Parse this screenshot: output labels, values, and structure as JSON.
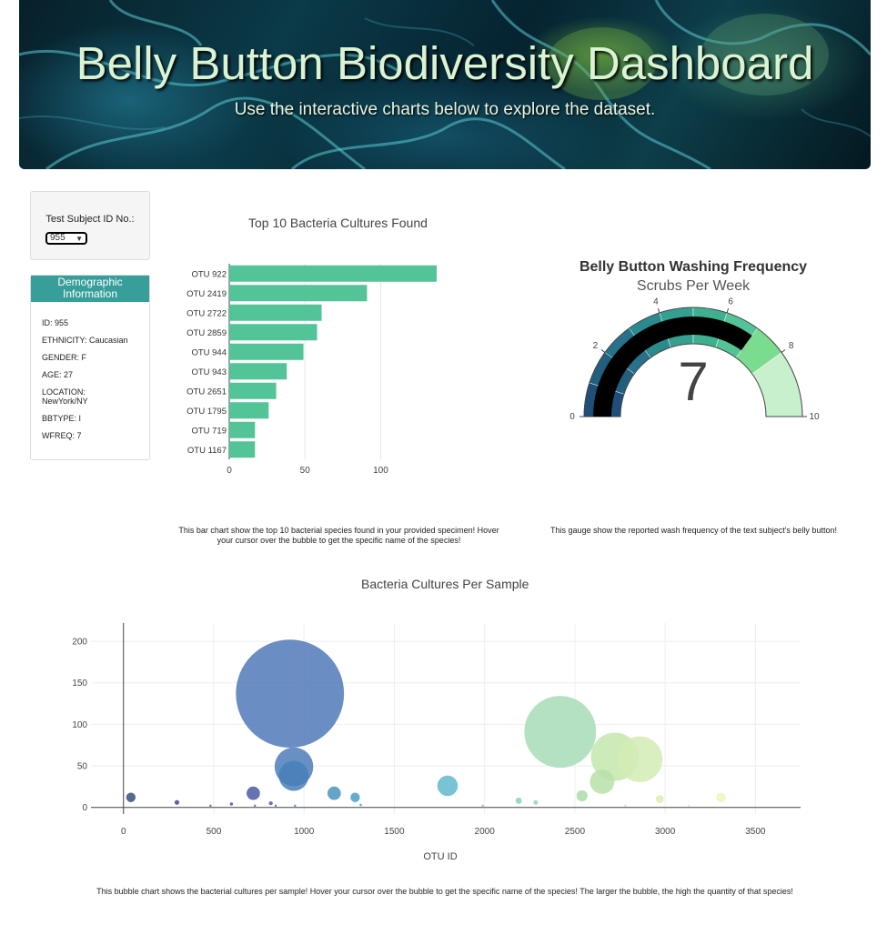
{
  "banner": {
    "title": "Belly Button Biodiversity Dashboard",
    "subtitle": "Use the interactive charts below to explore the dataset."
  },
  "selector": {
    "label": "Test Subject ID No.:",
    "selected": "955"
  },
  "demographics": {
    "header": "Demographic Information",
    "items": [
      "ID: 955",
      "ETHNICITY: Caucasian",
      "GENDER: F",
      "AGE: 27",
      "LOCATION: NewYork/NY",
      "BBTYPE: I",
      "WFREQ: 7"
    ]
  },
  "captions": {
    "bar": "This bar chart show the top 10 bacterial species found in your provided specimen! Hover your cursor over the bubble to get the specific name of the species!",
    "gauge": "This gauge show the reported wash frequency of the text subject's belly button!",
    "bubble": "This bubble chart shows the bacterial cultures per sample! Hover your cursor over the bubble to get the specific name of the species! The larger the bubble, the high the quantity of that species!"
  },
  "colors": {
    "bar": "#52c497",
    "demo_header": "#379e9a"
  },
  "chart_data": [
    {
      "type": "bar",
      "orientation": "horizontal",
      "title": "Top 10 Bacteria Cultures Found",
      "categories": [
        "OTU 922",
        "OTU 2419",
        "OTU 2722",
        "OTU 2859",
        "OTU 944",
        "OTU 943",
        "OTU 2651",
        "OTU 1795",
        "OTU 719",
        "OTU 1167"
      ],
      "values": [
        137,
        91,
        61,
        58,
        49,
        38,
        31,
        26,
        17,
        17
      ],
      "xticks": [
        0,
        50,
        100
      ],
      "xlim": [
        0,
        137
      ]
    },
    {
      "type": "gauge",
      "title": "Belly Button Washing Frequency",
      "subtitle": "Scrubs Per Week",
      "value": 7,
      "range": [
        0,
        10
      ],
      "ticks": [
        0,
        2,
        4,
        6,
        8,
        10
      ],
      "steps": [
        {
          "range": [
            0,
            1
          ],
          "color": "#1f4e79"
        },
        {
          "range": [
            1,
            2
          ],
          "color": "#215f7c"
        },
        {
          "range": [
            2,
            3
          ],
          "color": "#27718a"
        },
        {
          "range": [
            3,
            4
          ],
          "color": "#2b8a8d"
        },
        {
          "range": [
            4,
            5
          ],
          "color": "#34a08f"
        },
        {
          "range": [
            5,
            6
          ],
          "color": "#3fb08f"
        },
        {
          "range": [
            6,
            7
          ],
          "color": "#52c497"
        },
        {
          "range": [
            7,
            8
          ],
          "color": "#79dc8f"
        },
        {
          "range": [
            8,
            10
          ],
          "color": "#c8f0cc"
        }
      ]
    },
    {
      "type": "scatter",
      "title": "Bacteria Cultures Per Sample",
      "xlabel": "OTU ID",
      "xlim": [
        -180,
        3750
      ],
      "ylim": [
        -8,
        222
      ],
      "xticks": [
        0,
        500,
        1000,
        1500,
        2000,
        2500,
        3000,
        3500
      ],
      "yticks": [
        0,
        50,
        100,
        150,
        200
      ],
      "points": [
        {
          "x": 922,
          "y": 137,
          "c": "#5079b8"
        },
        {
          "x": 944,
          "y": 49,
          "c": "#4d7db9"
        },
        {
          "x": 943,
          "y": 38,
          "c": "#4780b8"
        },
        {
          "x": 2419,
          "y": 91,
          "c": "#a8dcb8"
        },
        {
          "x": 2722,
          "y": 61,
          "c": "#c4e6ad"
        },
        {
          "x": 2859,
          "y": 58,
          "c": "#d4ecb4"
        },
        {
          "x": 2651,
          "y": 31,
          "c": "#b8e0a8"
        },
        {
          "x": 1795,
          "y": 26,
          "c": "#62b8cc"
        },
        {
          "x": 1167,
          "y": 17,
          "c": "#4a93c0"
        },
        {
          "x": 719,
          "y": 17,
          "c": "#4a5aa0"
        },
        {
          "x": 1283,
          "y": 12,
          "c": "#4a9fc8"
        },
        {
          "x": 41,
          "y": 12,
          "c": "#3b4b80"
        },
        {
          "x": 2540,
          "y": 14,
          "c": "#a8dca8"
        },
        {
          "x": 3310,
          "y": 12,
          "c": "#eef5b8"
        },
        {
          "x": 2970,
          "y": 10,
          "c": "#dcefb0"
        },
        {
          "x": 2189,
          "y": 8,
          "c": "#8dd0b8"
        },
        {
          "x": 2283,
          "y": 6,
          "c": "#9ad6b4"
        },
        {
          "x": 296,
          "y": 6,
          "c": "#404b90"
        },
        {
          "x": 816,
          "y": 5,
          "c": "#4a62a8"
        },
        {
          "x": 598,
          "y": 4,
          "c": "#4555a0"
        },
        {
          "x": 1314,
          "y": 3,
          "c": "#4aa6c8"
        },
        {
          "x": 482,
          "y": 2,
          "c": "#4858a0"
        },
        {
          "x": 950,
          "y": 2,
          "c": "#4d7ab8"
        },
        {
          "x": 843,
          "y": 2,
          "c": "#4c64a8"
        },
        {
          "x": 728,
          "y": 2,
          "c": "#4a5ca4"
        },
        {
          "x": 1990,
          "y": 2,
          "c": "#7cc6c0"
        },
        {
          "x": 2780,
          "y": 2,
          "c": "#c8e8b0"
        },
        {
          "x": 3130,
          "y": 2,
          "c": "#e4f0b4"
        }
      ]
    }
  ]
}
